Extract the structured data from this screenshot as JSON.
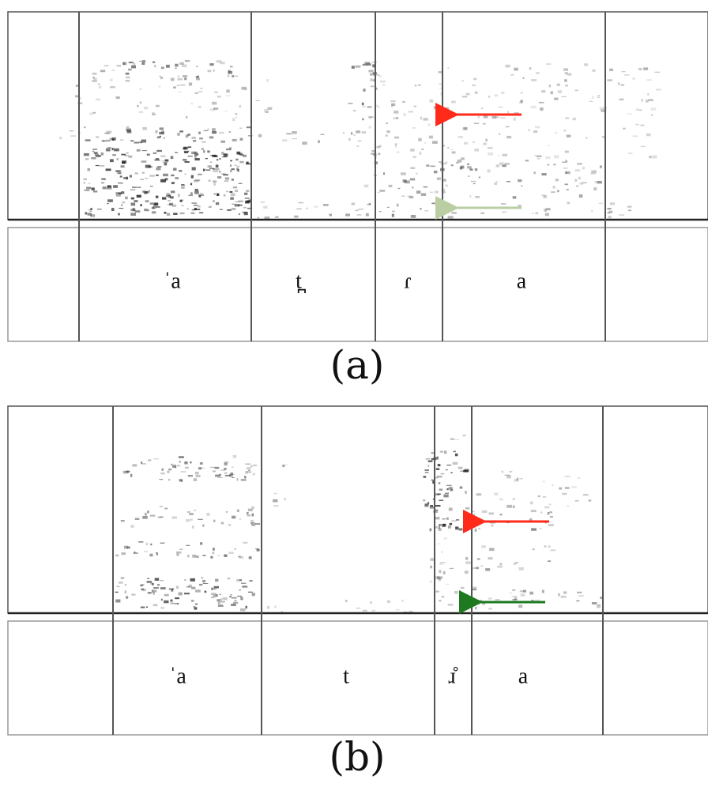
{
  "panels": [
    {
      "segments": [
        "ˈa",
        "t̪",
        "ɾ",
        "a"
      ],
      "caption": "(a)"
    },
    {
      "segments": [
        "ˈa",
        "t",
        "ɹ̊",
        "a"
      ],
      "caption": "(b)"
    }
  ]
}
